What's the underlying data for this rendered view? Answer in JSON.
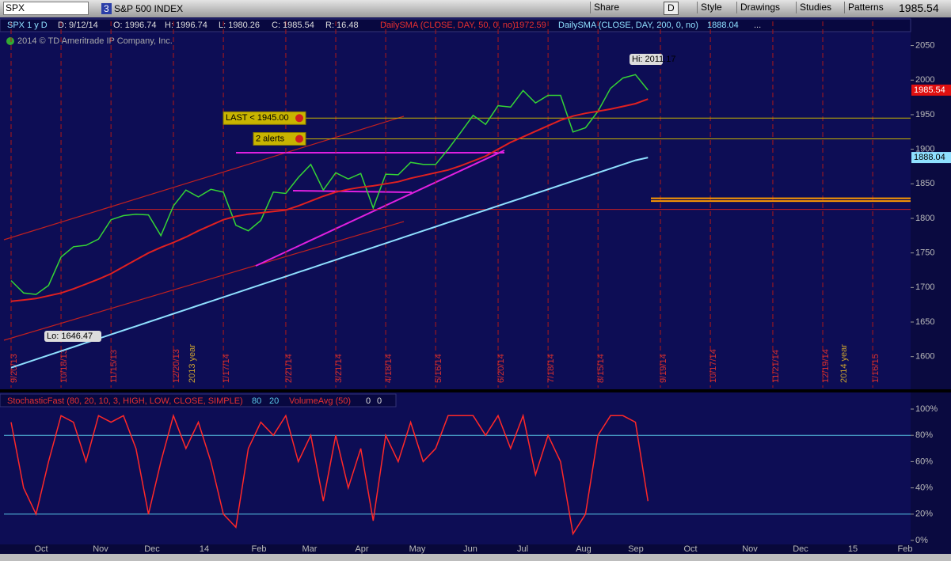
{
  "toolbar": {
    "symbol": "SPX",
    "count": "3",
    "name": "S&P 500 INDEX",
    "buttons": [
      "Share",
      "D",
      "Style",
      "Drawings",
      "Studies",
      "Patterns"
    ],
    "last": "1985.54"
  },
  "header": {
    "date": "D: 9/12/14",
    "open": "O: 1996.74",
    "high": "H: 1996.74",
    "low": "L: 1980.26",
    "close": "C: 1985.54",
    "range": "R: 16.48",
    "more": "...",
    "copyright": "2014 © TD Ameritrade IP Company, Inc."
  },
  "chart_data": [
    {
      "type": "line",
      "categories": [
        "9/20/13",
        null,
        null,
        null,
        "10/18/13",
        null,
        null,
        null,
        "11/15/13",
        null,
        null,
        null,
        null,
        "12/20/13",
        null,
        null,
        null,
        "1/17/14",
        null,
        null,
        null,
        null,
        "2/21/14",
        null,
        null,
        null,
        "3/21/14",
        null,
        null,
        null,
        "4/18/14",
        null,
        null,
        null,
        "5/16/14",
        null,
        null,
        null,
        null,
        "6/20/14",
        null,
        null,
        null,
        "7/18/14",
        null,
        null,
        null,
        "8/15/14",
        null,
        null,
        null,
        null,
        "9/19/14",
        null,
        null,
        null,
        "10/17/14",
        null,
        null,
        null,
        null,
        "11/21/14",
        null,
        null,
        null,
        "12/19/14",
        null,
        null,
        null,
        "1/16/15",
        null,
        null
      ],
      "series": [
        {
          "name": "SPX 1 y D",
          "color": "#35d435",
          "values": [
            1710,
            1692,
            1690,
            1703,
            1744,
            1759,
            1761,
            1770,
            1798,
            1804,
            1806,
            1805,
            1775,
            1818,
            1841,
            1831,
            1842,
            1838,
            1790,
            1782,
            1797,
            1838,
            1836,
            1859,
            1878,
            1841,
            1866,
            1857,
            1865,
            1815,
            1864,
            1863,
            1881,
            1878,
            1878,
            1900,
            1924,
            1949,
            1936,
            1963,
            1961,
            1985,
            1967,
            1978,
            1978,
            1925,
            1931,
            1955,
            1988,
            2003,
            2008,
            1985.54,
            null,
            null,
            null,
            null,
            null,
            null,
            null,
            null,
            null,
            null,
            null,
            null,
            null,
            null,
            null,
            null,
            null,
            null,
            null,
            null
          ]
        },
        {
          "name": "DailySMA (CLOSE, DAY, 50, 0, no)",
          "color": "#e02020",
          "last": 1972.59,
          "values": [
            1680,
            1682,
            1684,
            1688,
            1692,
            1698,
            1705,
            1712,
            1720,
            1730,
            1740,
            1750,
            1758,
            1765,
            1773,
            1782,
            1790,
            1798,
            1803,
            1806,
            1808,
            1810,
            1812,
            1818,
            1825,
            1832,
            1838,
            1842,
            1845,
            1847,
            1850,
            1853,
            1858,
            1862,
            1866,
            1870,
            1876,
            1883,
            1890,
            1900,
            1910,
            1918,
            1926,
            1934,
            1942,
            1948,
            1952,
            1955,
            1958,
            1962,
            1966,
            1972.59,
            null,
            null,
            null,
            null,
            null,
            null,
            null,
            null,
            null,
            null,
            null,
            null,
            null,
            null,
            null,
            null,
            null,
            null,
            null,
            null
          ]
        },
        {
          "name": "DailySMA (CLOSE, DAY, 200, 0, no)",
          "color": "#8fe0ff",
          "last": 1888.04,
          "values": [
            1584,
            1590,
            1596,
            1602,
            1608,
            1614,
            1620,
            1626,
            1632,
            1638,
            1644,
            1650,
            1656,
            1662,
            1668,
            1674,
            1680,
            1686,
            1692,
            1698,
            1704,
            1710,
            1716,
            1722,
            1728,
            1734,
            1740,
            1746,
            1752,
            1758,
            1764,
            1770,
            1776,
            1782,
            1788,
            1794,
            1800,
            1806,
            1812,
            1818,
            1824,
            1830,
            1836,
            1842,
            1848,
            1854,
            1860,
            1866,
            1872,
            1878,
            1884,
            1888.04,
            null,
            null,
            null,
            null,
            null,
            null,
            null,
            null,
            null,
            null,
            null,
            null,
            null,
            null,
            null,
            null,
            null,
            null,
            null,
            null
          ]
        }
      ],
      "ylim": [
        1555,
        2085
      ],
      "yticks": [
        1600,
        1650,
        1700,
        1750,
        1800,
        1850,
        1900,
        1950,
        2000,
        2050
      ],
      "year_labels": [
        "2013 year",
        "2014 year"
      ],
      "alerts": [
        {
          "label": "LAST < 1945.00",
          "value": 1945
        },
        {
          "label": "2 alerts",
          "value": 1915
        }
      ],
      "horizontal_lines": [
        {
          "value": 1813,
          "color": "#d02020"
        },
        {
          "value": 1829,
          "color": "#ff9a00"
        },
        {
          "value": 1825,
          "color": "#ff9a00"
        }
      ],
      "price_tags": [
        {
          "value": 1985.54,
          "color": "#e01010"
        },
        {
          "value": 1888.04,
          "color": "#8fe0ff"
        }
      ],
      "hi": "Hi: 2011.17",
      "lo": "Lo: 1646.47"
    },
    {
      "type": "line",
      "title": "StochasticFast (80, 20, 10, 3, HIGH, LOW, CLOSE, SIMPLE)",
      "levels": [
        80,
        20
      ],
      "study2": "VolumeAvg (50)",
      "study2_values": [
        0,
        0
      ],
      "series": [
        {
          "name": "StochasticFast",
          "color": "#ff2828",
          "values": [
            90,
            40,
            20,
            60,
            95,
            90,
            60,
            95,
            90,
            95,
            70,
            20,
            60,
            95,
            70,
            90,
            60,
            20,
            10,
            70,
            90,
            80,
            95,
            60,
            80,
            30,
            80,
            40,
            70,
            15,
            80,
            60,
            90,
            60,
            70,
            95,
            95,
            95,
            80,
            95,
            70,
            95,
            50,
            80,
            60,
            5,
            20,
            80,
            95,
            95,
            90,
            30,
            null,
            null,
            null,
            null,
            null,
            null,
            null,
            null,
            null,
            null,
            null,
            null,
            null,
            null,
            null,
            null,
            null,
            null,
            null,
            null
          ]
        }
      ],
      "ylim": [
        0,
        100
      ],
      "yticks": [
        {
          "value": 100,
          "label": "100%"
        },
        {
          "value": 80,
          "label": "80%"
        },
        {
          "value": 60,
          "label": "60%"
        },
        {
          "value": 40,
          "label": "40%"
        },
        {
          "value": 20,
          "label": "20%"
        },
        {
          "value": 0,
          "label": "0%"
        }
      ],
      "month_labels": [
        "Oct",
        "Nov",
        "Dec",
        "14",
        "Feb",
        "Mar",
        "Apr",
        "May",
        "Jun",
        "Jul",
        "Aug",
        "Sep",
        "Oct",
        "Nov",
        "Dec",
        "15",
        "Feb"
      ]
    }
  ]
}
